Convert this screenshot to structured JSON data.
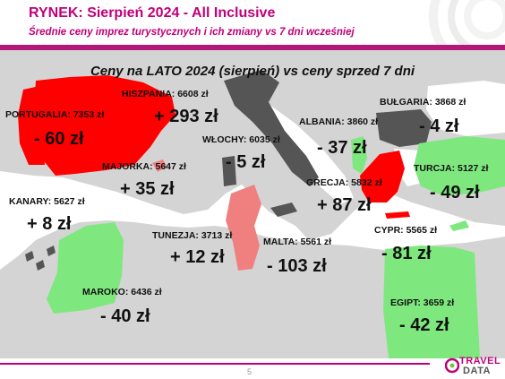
{
  "header": {
    "title": "RYNEK: Sierpień 2024 - All Inclusive",
    "subtitle": "Średnie ceny imprez turystycznych i ich zmiany vs 7 dni wcześniej"
  },
  "map": {
    "title": "Ceny na LATO 2024 (sierpień) vs ceny sprzed 7 dni",
    "colors": {
      "increase": "#ff0000",
      "small_increase": "#f08080",
      "decrease": "#7ee87e",
      "small_decrease": "#555555",
      "land": "#d4d4d4",
      "sea": "#ffffff"
    },
    "destinations": [
      {
        "label": "PORTUGALIA: 7353 zł",
        "change": "- 60 zł"
      },
      {
        "label": "HISZPANIA: 6608 zł",
        "change": "+ 293 zł"
      },
      {
        "label": "MAJORKA: 5647 zł",
        "change": "+ 35 zł"
      },
      {
        "label": "KANARY: 5627 zł",
        "change": "+ 8 zł"
      },
      {
        "label": "WŁOCHY: 6035 zł",
        "change": "- 5 zł"
      },
      {
        "label": "ALBANIA: 3860 zł",
        "change": "- 37 zł"
      },
      {
        "label": "BUŁGARIA: 3868 zł",
        "change": "- 4 zł"
      },
      {
        "label": "TURCJA: 5127 zł",
        "change": "- 49 zł"
      },
      {
        "label": "GRECJA: 5832 zł",
        "change": "+ 87 zł"
      },
      {
        "label": "TUNEZJA: 3713 zł",
        "change": "+ 12 zł"
      },
      {
        "label": "MALTA: 5561 zł",
        "change": "- 103 zł"
      },
      {
        "label": "CYPR: 5565 zł",
        "change": "- 81 zł"
      },
      {
        "label": "MAROKO: 6436 zł",
        "change": "- 40 zł"
      },
      {
        "label": "EGIPT: 3659 zł",
        "change": "- 42 zł"
      }
    ]
  },
  "footer": {
    "page_number": "5",
    "logo_line1": "TRAVEL",
    "logo_line2": "DATA"
  }
}
